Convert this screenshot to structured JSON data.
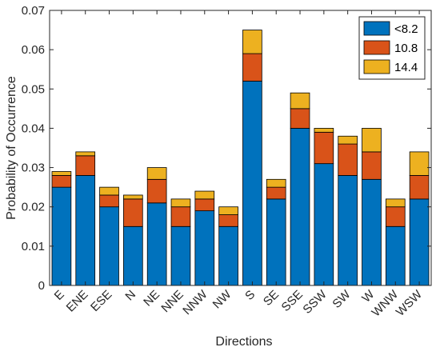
{
  "chart_data": {
    "type": "bar",
    "stacked": true,
    "title": "",
    "xlabel": "Directions",
    "ylabel": "Probability of Occurrence",
    "ylim": [
      0,
      0.07
    ],
    "yticks": [
      "0",
      "0.01",
      "0.02",
      "0.03",
      "0.04",
      "0.05",
      "0.06",
      "0.07"
    ],
    "grid": false,
    "legend_position": "top-right",
    "categories": [
      "E",
      "ENE",
      "ESE",
      "N",
      "NE",
      "NNE",
      "NNW",
      "NW",
      "S",
      "SE",
      "SSE",
      "SSW",
      "SW",
      "W",
      "WNW",
      "WSW"
    ],
    "series": [
      {
        "name": "<8.2",
        "color": "#0072BD",
        "values": [
          0.025,
          0.028,
          0.02,
          0.015,
          0.021,
          0.015,
          0.019,
          0.015,
          0.052,
          0.022,
          0.04,
          0.031,
          0.028,
          0.027,
          0.015,
          0.022
        ]
      },
      {
        "name": "10.8",
        "color": "#D95319",
        "values": [
          0.003,
          0.005,
          0.003,
          0.007,
          0.006,
          0.005,
          0.003,
          0.003,
          0.007,
          0.003,
          0.005,
          0.008,
          0.008,
          0.007,
          0.005,
          0.006
        ]
      },
      {
        "name": "14.4",
        "color": "#EDB120",
        "values": [
          0.001,
          0.001,
          0.002,
          0.001,
          0.003,
          0.002,
          0.002,
          0.002,
          0.006,
          0.002,
          0.004,
          0.001,
          0.002,
          0.006,
          0.002,
          0.006
        ]
      }
    ]
  }
}
